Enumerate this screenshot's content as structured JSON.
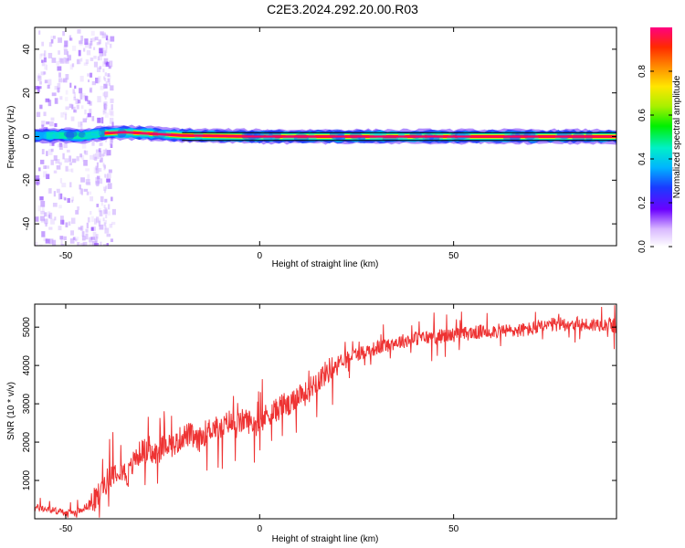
{
  "title": "C2E3.2024.292.20.00.R03",
  "chart_data": [
    {
      "type": "heatmap",
      "xlabel": "Height of straight line (km)",
      "ylabel": "Frequency (Hz)",
      "xlim": [
        -58,
        92
      ],
      "ylim": [
        -50,
        50
      ],
      "xticks": [
        -50,
        0,
        50
      ],
      "yticks": [
        -40,
        -20,
        0,
        20,
        40
      ],
      "colorbar": {
        "label": "Normalized spectral amplitude",
        "range": [
          0,
          1
        ],
        "ticks": [
          "0.0",
          "0.2",
          "0.4",
          "0.6",
          "0.8"
        ]
      },
      "ridge": {
        "description_points": [
          {
            "x": -58,
            "y": 0.5
          },
          {
            "x": -50,
            "y": 0.5
          },
          {
            "x": -45,
            "y": 0.3
          },
          {
            "x": -40,
            "y": 1.5
          },
          {
            "x": -35,
            "y": 2
          },
          {
            "x": -30,
            "y": 1.5
          },
          {
            "x": -20,
            "y": 0.5
          },
          {
            "x": 0,
            "y": 0
          },
          {
            "x": 50,
            "y": 0
          },
          {
            "x": 92,
            "y": 0
          }
        ]
      }
    },
    {
      "type": "line",
      "xlabel": "Height of straight line (km)",
      "ylabel": "SNR (10 * v/v)",
      "xlim": [
        -58,
        92
      ],
      "ylim": [
        0,
        5600
      ],
      "xticks": [
        -50,
        0,
        50
      ],
      "yticks": [
        1000,
        2000,
        3000,
        4000,
        5000
      ],
      "series": [
        {
          "color": "#ee3333",
          "x": [
            -58,
            -55,
            -52,
            -50,
            -48,
            -46,
            -44,
            -42,
            -40,
            -38,
            -36,
            -34,
            -32,
            -30,
            -28,
            -26,
            -24,
            -22,
            -20,
            -18,
            -16,
            -14,
            -12,
            -10,
            -8,
            -6,
            -4,
            -2,
            0,
            2,
            4,
            6,
            8,
            10,
            12,
            14,
            16,
            18,
            20,
            22,
            25,
            30,
            35,
            40,
            45,
            50,
            55,
            60,
            65,
            70,
            75,
            80,
            85,
            90,
            92
          ],
          "values": [
            300,
            250,
            200,
            150,
            150,
            250,
            350,
            550,
            900,
            1200,
            1350,
            1100,
            1600,
            1800,
            1650,
            1750,
            2000,
            1900,
            2150,
            2200,
            2000,
            2250,
            2400,
            2300,
            2550,
            2400,
            2600,
            2500,
            2450,
            2750,
            2800,
            3000,
            2900,
            3300,
            3250,
            3550,
            3700,
            3900,
            4050,
            4200,
            4300,
            4450,
            4600,
            4700,
            4750,
            4800,
            4850,
            4900,
            4900,
            4950,
            5050,
            5100,
            5050,
            5100,
            5000
          ]
        }
      ]
    }
  ]
}
